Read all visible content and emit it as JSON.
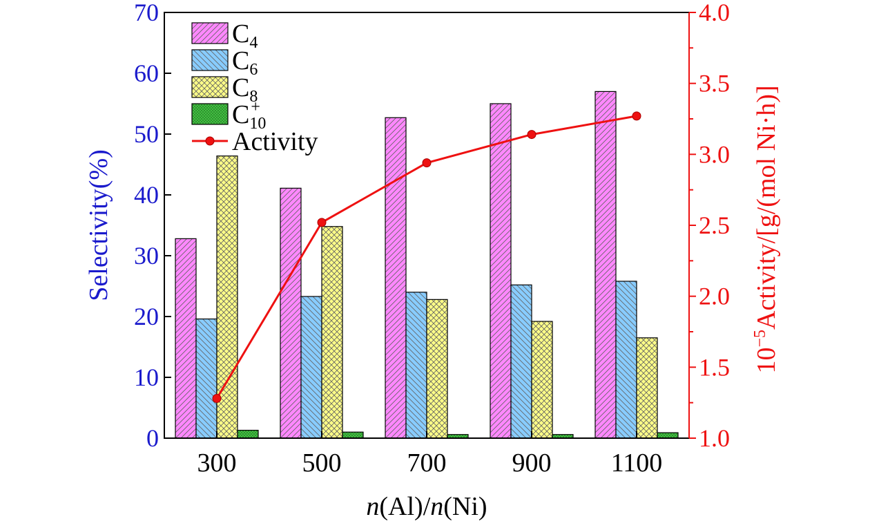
{
  "chart_data": {
    "type": "bar",
    "categories": [
      "300",
      "500",
      "700",
      "900",
      "1100"
    ],
    "series": [
      {
        "name": "C4",
        "label_base": "C",
        "label_sub": "4",
        "label_sup": "",
        "color": "#ff88ff",
        "hatch": "diag-left",
        "values": [
          32.8,
          41.1,
          52.7,
          55.0,
          57.0
        ]
      },
      {
        "name": "C6",
        "label_base": "C",
        "label_sub": "6",
        "label_sup": "",
        "color": "#88ccff",
        "hatch": "diag-right",
        "values": [
          19.6,
          23.3,
          24.0,
          25.2,
          25.8
        ]
      },
      {
        "name": "C8",
        "label_base": "C",
        "label_sub": "8",
        "label_sup": "",
        "color": "#ffff88",
        "hatch": "cross",
        "values": [
          46.4,
          34.8,
          22.8,
          19.2,
          16.5
        ]
      },
      {
        "name": "C10+",
        "label_base": "C",
        "label_sub": "10",
        "label_sup": "+",
        "color": "#44cc44",
        "hatch": "dense",
        "values": [
          1.3,
          1.0,
          0.6,
          0.6,
          0.9
        ]
      }
    ],
    "line_series": {
      "name": "Activity",
      "color": "#ee1111",
      "values": [
        1.28,
        2.52,
        2.94,
        3.14,
        3.27
      ]
    },
    "xlabel": {
      "n1": "n",
      "part1": "(Al)/",
      "n2": "n",
      "part2": "(Ni)"
    },
    "ylabel_left": "Selectivity(%)",
    "ylabel_right": {
      "prefix": "10",
      "exponent": "−5",
      "rest": "Activity/[g/(mol Ni·h)]"
    },
    "ylim_left": [
      0,
      70
    ],
    "yticks_left": [
      0,
      10,
      20,
      30,
      40,
      50,
      60,
      70
    ],
    "ylim_right": [
      1.0,
      4.0
    ],
    "yticks_right": [
      "1.0",
      "1.5",
      "2.0",
      "2.5",
      "3.0",
      "3.5",
      "4.0"
    ],
    "left_axis_color": "#1a1acc",
    "right_axis_color": "#ee1111",
    "legend_position": "top-left",
    "grid": false
  }
}
